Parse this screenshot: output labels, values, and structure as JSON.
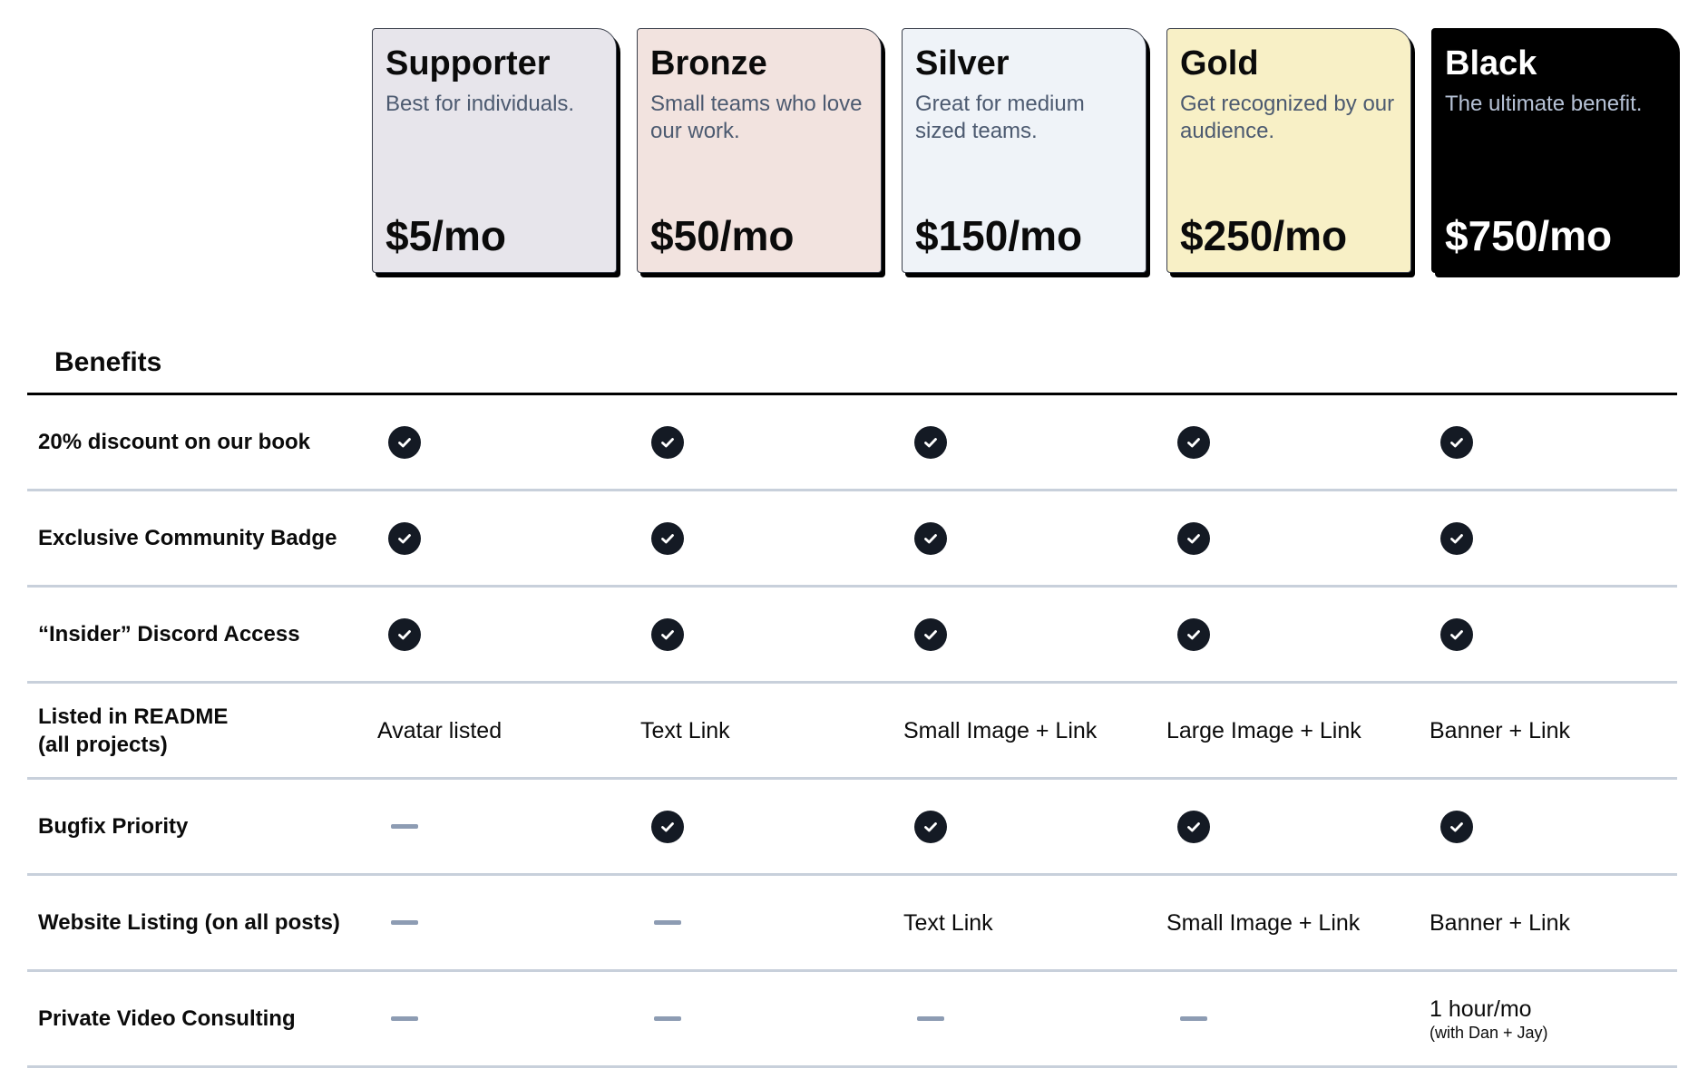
{
  "tiers": [
    {
      "name": "Supporter",
      "desc": "Best for individuals.",
      "price": "$5/mo",
      "color": "#e7e5eb"
    },
    {
      "name": "Bronze",
      "desc": "Small teams who love our work.",
      "price": "$50/mo",
      "color": "#f2e3df"
    },
    {
      "name": "Silver",
      "desc": "Great for medium sized teams.",
      "price": "$150/mo",
      "color": "#eff3f8"
    },
    {
      "name": "Gold",
      "desc": "Get recognized by our audience.",
      "price": "$250/mo",
      "color": "#f8f0c6"
    },
    {
      "name": "Black",
      "desc": "The ultimate benefit.",
      "price": "$750/mo",
      "color": "#000000"
    }
  ],
  "benefits": {
    "heading": "Benefits",
    "rows": [
      {
        "label": "20% discount on our book",
        "cells": [
          {
            "type": "check"
          },
          {
            "type": "check"
          },
          {
            "type": "check"
          },
          {
            "type": "check"
          },
          {
            "type": "check"
          }
        ]
      },
      {
        "label": "Exclusive Community Badge",
        "cells": [
          {
            "type": "check"
          },
          {
            "type": "check"
          },
          {
            "type": "check"
          },
          {
            "type": "check"
          },
          {
            "type": "check"
          }
        ]
      },
      {
        "label": "“Insider” Discord Access",
        "cells": [
          {
            "type": "check"
          },
          {
            "type": "check"
          },
          {
            "type": "check"
          },
          {
            "type": "check"
          },
          {
            "type": "check"
          }
        ]
      },
      {
        "label": "Listed in README (all projects)",
        "cells": [
          {
            "type": "text",
            "text": "Avatar listed"
          },
          {
            "type": "text",
            "text": "Text Link"
          },
          {
            "type": "text",
            "text": "Small Image + Link"
          },
          {
            "type": "text",
            "text": "Large Image + Link"
          },
          {
            "type": "text",
            "text": "Banner + Link"
          }
        ]
      },
      {
        "label": "Bugfix Priority",
        "cells": [
          {
            "type": "dash"
          },
          {
            "type": "check"
          },
          {
            "type": "check"
          },
          {
            "type": "check"
          },
          {
            "type": "check"
          }
        ]
      },
      {
        "label": "Website Listing (on all posts)",
        "cells": [
          {
            "type": "dash"
          },
          {
            "type": "dash"
          },
          {
            "type": "text",
            "text": "Text Link"
          },
          {
            "type": "text",
            "text": "Small Image + Link"
          },
          {
            "type": "text",
            "text": "Banner + Link"
          }
        ]
      },
      {
        "label": "Private Video Consulting",
        "cells": [
          {
            "type": "dash"
          },
          {
            "type": "dash"
          },
          {
            "type": "dash"
          },
          {
            "type": "dash"
          },
          {
            "type": "text",
            "text": "1 hour/mo",
            "sub": "(with Dan + Jay)"
          }
        ]
      }
    ]
  }
}
